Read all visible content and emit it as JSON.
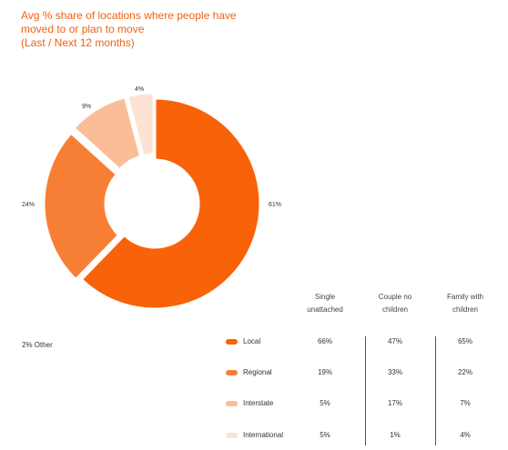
{
  "chart_data": [
    {
      "type": "pie",
      "title_lines": [
        "Avg % share of locations where people have",
        "moved to or plan to move",
        "(Last / Next 12 months)"
      ],
      "slices": [
        {
          "name": "Local",
          "value": 61,
          "label": "61%",
          "color": "#f86208"
        },
        {
          "name": "Regional",
          "value": 24,
          "label": "24%",
          "color": "#f77f35"
        },
        {
          "name": "Interstate",
          "value": 9,
          "label": "9%",
          "color": "#fbbd97"
        },
        {
          "name": "International",
          "value": 4,
          "label": "4%",
          "color": "#fde3d3"
        }
      ],
      "note": "2% Other"
    },
    {
      "type": "table",
      "columns": [
        "Single unattached",
        "Couple no children",
        "Family with children"
      ],
      "column_lines": [
        [
          "Single",
          "unattached"
        ],
        [
          "Couple no",
          "children"
        ],
        [
          "Family with",
          "children"
        ]
      ],
      "rows": [
        {
          "label": "Local",
          "color": "#f86208",
          "values": [
            "66%",
            "47%",
            "65%"
          ]
        },
        {
          "label": "Regional",
          "color": "#f77f35",
          "values": [
            "19%",
            "33%",
            "22%"
          ]
        },
        {
          "label": "Interstate",
          "color": "#fbbd97",
          "values": [
            "5%",
            "17%",
            "7%"
          ]
        },
        {
          "label": "International",
          "color": "#fde3d3",
          "values": [
            "5%",
            "1%",
            "4%"
          ]
        }
      ]
    }
  ]
}
